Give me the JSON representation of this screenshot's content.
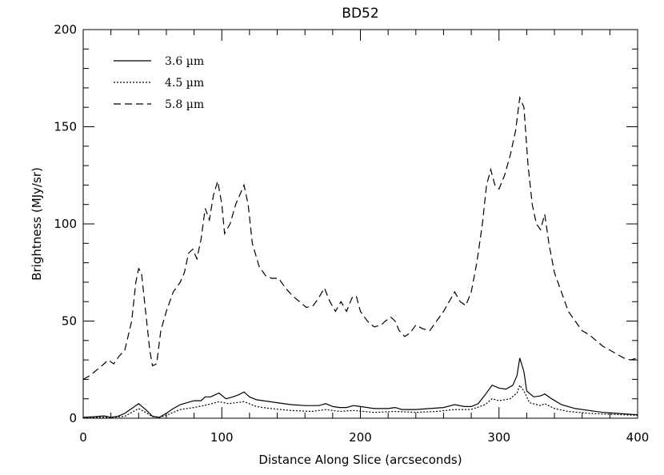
{
  "chart_data": {
    "type": "line",
    "title": "BD52",
    "xlabel": "Distance Along Slice (arcseconds)",
    "ylabel": "Brightness (MJy/sr)",
    "xlim": [
      0,
      400
    ],
    "ylim": [
      0,
      200
    ],
    "xticks": [
      "0",
      "100",
      "200",
      "300",
      "400"
    ],
    "yticks": [
      "0",
      "50",
      "100",
      "150",
      "200"
    ],
    "grid": false,
    "legend_position": "top-left",
    "series": [
      {
        "name": "3.6 µm",
        "dash": "solid",
        "points": [
          [
            0,
            0.5
          ],
          [
            8,
            0.8
          ],
          [
            15,
            1.2
          ],
          [
            20,
            0.5
          ],
          [
            25,
            1.0
          ],
          [
            30,
            2.5
          ],
          [
            35,
            5
          ],
          [
            40,
            7.5
          ],
          [
            45,
            4.5
          ],
          [
            50,
            1
          ],
          [
            55,
            0.5
          ],
          [
            60,
            2.5
          ],
          [
            65,
            5
          ],
          [
            70,
            7
          ],
          [
            75,
            8
          ],
          [
            80,
            9
          ],
          [
            85,
            9
          ],
          [
            88,
            11
          ],
          [
            92,
            11
          ],
          [
            98,
            13
          ],
          [
            103,
            10
          ],
          [
            108,
            11
          ],
          [
            112,
            12
          ],
          [
            116,
            13.5
          ],
          [
            120,
            11
          ],
          [
            125,
            9.5
          ],
          [
            130,
            9
          ],
          [
            140,
            8
          ],
          [
            150,
            7
          ],
          [
            160,
            6.5
          ],
          [
            170,
            6.5
          ],
          [
            175,
            7.5
          ],
          [
            180,
            6
          ],
          [
            185,
            5.5
          ],
          [
            190,
            5.5
          ],
          [
            195,
            6.5
          ],
          [
            200,
            6
          ],
          [
            210,
            5
          ],
          [
            220,
            5
          ],
          [
            225,
            5.5
          ],
          [
            230,
            4.5
          ],
          [
            240,
            4.5
          ],
          [
            250,
            5
          ],
          [
            260,
            5.5
          ],
          [
            268,
            7
          ],
          [
            275,
            6
          ],
          [
            280,
            6
          ],
          [
            285,
            7.5
          ],
          [
            290,
            12
          ],
          [
            295,
            17
          ],
          [
            300,
            15.5
          ],
          [
            305,
            15
          ],
          [
            310,
            17
          ],
          [
            313,
            22
          ],
          [
            315,
            31
          ],
          [
            318,
            24
          ],
          [
            320,
            14
          ],
          [
            325,
            11
          ],
          [
            330,
            11.5
          ],
          [
            333,
            12.5
          ],
          [
            338,
            10
          ],
          [
            345,
            7
          ],
          [
            355,
            5
          ],
          [
            365,
            4
          ],
          [
            375,
            3
          ],
          [
            385,
            2.5
          ],
          [
            395,
            2
          ],
          [
            400,
            1.8
          ]
        ]
      },
      {
        "name": "4.5 µm",
        "dash": "dotted",
        "points": [
          [
            0,
            0.3
          ],
          [
            10,
            0.4
          ],
          [
            20,
            0.5
          ],
          [
            25,
            0.6
          ],
          [
            30,
            1
          ],
          [
            35,
            3
          ],
          [
            40,
            5
          ],
          [
            45,
            3
          ],
          [
            50,
            0.8
          ],
          [
            55,
            0.4
          ],
          [
            60,
            1.5
          ],
          [
            65,
            3
          ],
          [
            70,
            4.5
          ],
          [
            80,
            5.5
          ],
          [
            90,
            7
          ],
          [
            98,
            8.5
          ],
          [
            105,
            7.5
          ],
          [
            116,
            8.5
          ],
          [
            125,
            6
          ],
          [
            135,
            5
          ],
          [
            150,
            4
          ],
          [
            165,
            3.5
          ],
          [
            175,
            4.5
          ],
          [
            185,
            3.5
          ],
          [
            195,
            4
          ],
          [
            210,
            3
          ],
          [
            225,
            3.5
          ],
          [
            240,
            3
          ],
          [
            255,
            3.5
          ],
          [
            268,
            4.5
          ],
          [
            280,
            4.5
          ],
          [
            290,
            7
          ],
          [
            295,
            10
          ],
          [
            300,
            9
          ],
          [
            308,
            10
          ],
          [
            313,
            13
          ],
          [
            315,
            17
          ],
          [
            318,
            14
          ],
          [
            322,
            8
          ],
          [
            330,
            6.5
          ],
          [
            333,
            7.5
          ],
          [
            340,
            5
          ],
          [
            350,
            3.5
          ],
          [
            365,
            2.5
          ],
          [
            380,
            2
          ],
          [
            400,
            1.5
          ]
        ]
      },
      {
        "name": "5.8 µm",
        "dash": "dashed",
        "points": [
          [
            0,
            20
          ],
          [
            5,
            22
          ],
          [
            10,
            25
          ],
          [
            15,
            28
          ],
          [
            18,
            30
          ],
          [
            22,
            28
          ],
          [
            26,
            32
          ],
          [
            30,
            35
          ],
          [
            35,
            50
          ],
          [
            38,
            70
          ],
          [
            40,
            77
          ],
          [
            42,
            75
          ],
          [
            45,
            55
          ],
          [
            48,
            35
          ],
          [
            50,
            27
          ],
          [
            53,
            28
          ],
          [
            56,
            45
          ],
          [
            60,
            55
          ],
          [
            65,
            65
          ],
          [
            70,
            70
          ],
          [
            73,
            75
          ],
          [
            76,
            85
          ],
          [
            79,
            87
          ],
          [
            82,
            82
          ],
          [
            85,
            92
          ],
          [
            88,
            108
          ],
          [
            91,
            102
          ],
          [
            94,
            115
          ],
          [
            97,
            122
          ],
          [
            100,
            110
          ],
          [
            102,
            95
          ],
          [
            106,
            100
          ],
          [
            110,
            110
          ],
          [
            113,
            115
          ],
          [
            116,
            120
          ],
          [
            119,
            110
          ],
          [
            122,
            90
          ],
          [
            127,
            78
          ],
          [
            132,
            73
          ],
          [
            136,
            72
          ],
          [
            141,
            72
          ],
          [
            146,
            67
          ],
          [
            151,
            63
          ],
          [
            156,
            60
          ],
          [
            161,
            57
          ],
          [
            166,
            58
          ],
          [
            170,
            62
          ],
          [
            174,
            67
          ],
          [
            178,
            60
          ],
          [
            182,
            55
          ],
          [
            186,
            60
          ],
          [
            190,
            55
          ],
          [
            194,
            62
          ],
          [
            197,
            63
          ],
          [
            200,
            55
          ],
          [
            205,
            50
          ],
          [
            210,
            47
          ],
          [
            215,
            48
          ],
          [
            218,
            50
          ],
          [
            222,
            52
          ],
          [
            225,
            50
          ],
          [
            228,
            45
          ],
          [
            232,
            42
          ],
          [
            236,
            44
          ],
          [
            240,
            48
          ],
          [
            245,
            46
          ],
          [
            250,
            45
          ],
          [
            255,
            50
          ],
          [
            260,
            55
          ],
          [
            264,
            60
          ],
          [
            268,
            65
          ],
          [
            272,
            60
          ],
          [
            276,
            58
          ],
          [
            280,
            65
          ],
          [
            284,
            80
          ],
          [
            288,
            100
          ],
          [
            291,
            120
          ],
          [
            294,
            128
          ],
          [
            297,
            120
          ],
          [
            300,
            118
          ],
          [
            304,
            125
          ],
          [
            308,
            135
          ],
          [
            312,
            148
          ],
          [
            315,
            165
          ],
          [
            318,
            160
          ],
          [
            321,
            130
          ],
          [
            324,
            110
          ],
          [
            327,
            100
          ],
          [
            330,
            97
          ],
          [
            333,
            105
          ],
          [
            336,
            90
          ],
          [
            340,
            75
          ],
          [
            345,
            65
          ],
          [
            350,
            55
          ],
          [
            355,
            50
          ],
          [
            360,
            45
          ],
          [
            365,
            43
          ],
          [
            370,
            40
          ],
          [
            375,
            37
          ],
          [
            380,
            35
          ],
          [
            385,
            33
          ],
          [
            390,
            31
          ],
          [
            395,
            30
          ],
          [
            400,
            31
          ]
        ]
      }
    ]
  }
}
